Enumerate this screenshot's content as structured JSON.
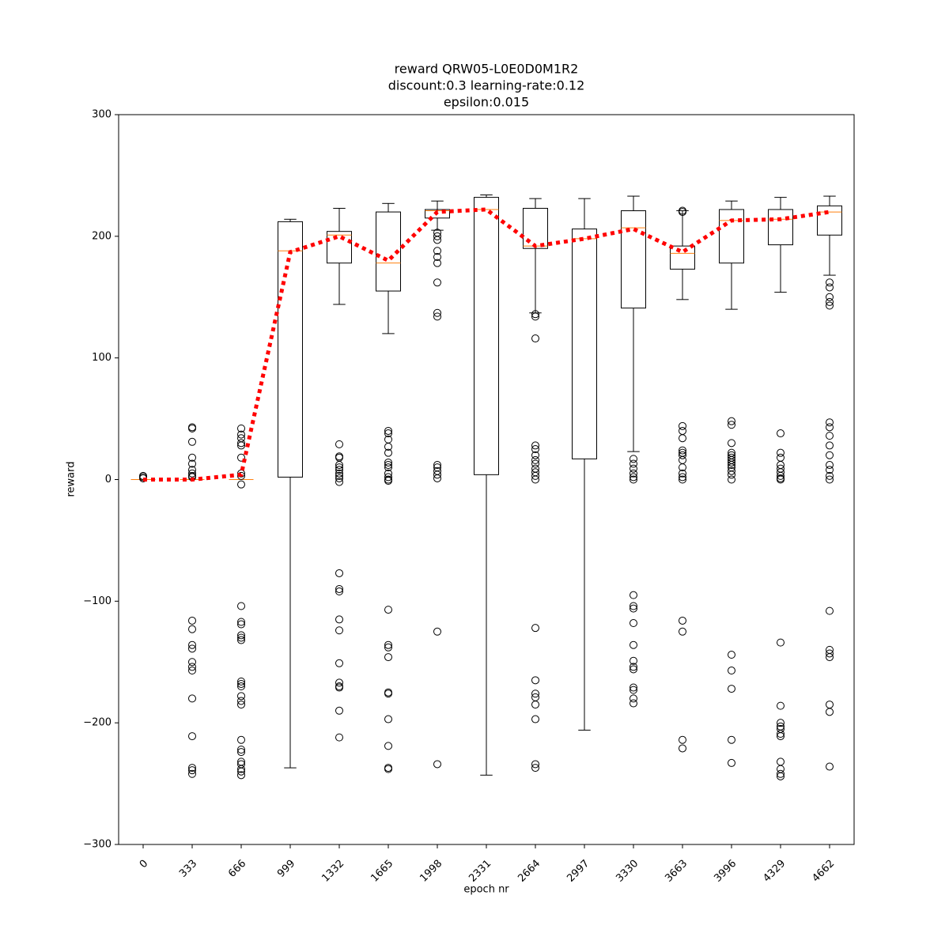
{
  "chart_data": {
    "type": "boxplot",
    "title": [
      "reward QRW05-L0E0D0M1R2",
      "discount:0.3 learning-rate:0.12",
      "epsilon:0.015"
    ],
    "xlabel": "epoch nr",
    "ylabel": "reward",
    "categories": [
      "0",
      "333",
      "666",
      "999",
      "1332",
      "1665",
      "1998",
      "2331",
      "2664",
      "2997",
      "3330",
      "3663",
      "3996",
      "4329",
      "4662"
    ],
    "ylim": [
      -300,
      300
    ],
    "yticks": [
      {
        "value": -300,
        "label": "−300"
      },
      {
        "value": -200,
        "label": "−200"
      },
      {
        "value": -100,
        "label": "−100"
      },
      0,
      100,
      200,
      300
    ],
    "box_color": "#000000",
    "median_color": "#ff7f0e",
    "boxes": {
      "low": [
        0,
        0,
        0,
        -237,
        144,
        120,
        205,
        -243,
        137,
        -206,
        23,
        148,
        140,
        154,
        168
      ],
      "q1": [
        0,
        0,
        0,
        2,
        178,
        155,
        215,
        4,
        190,
        17,
        141,
        173,
        178,
        193,
        201
      ],
      "median": [
        0,
        0,
        0,
        188,
        201,
        178,
        221,
        222,
        192,
        198,
        207,
        186,
        213,
        214,
        220
      ],
      "q3": [
        0,
        0,
        0,
        212,
        204,
        220,
        222,
        232,
        223,
        206,
        221,
        192,
        222,
        222,
        225
      ],
      "high": [
        0,
        0,
        0,
        214,
        223,
        227,
        229,
        234,
        231,
        231,
        233,
        221,
        229,
        232,
        233
      ],
      "outliers": [
        [
          1,
          2,
          3
        ],
        [
          43,
          42,
          31,
          18,
          13,
          8,
          5,
          3,
          2,
          -116,
          -123,
          -136,
          -139,
          -150,
          -154,
          -157,
          -180,
          -211,
          -237,
          -239,
          -242
        ],
        [
          42,
          37,
          34,
          30,
          28,
          18,
          5,
          3,
          -4,
          -104,
          -117,
          -119,
          -128,
          -130,
          -132,
          -166,
          -168,
          -170,
          -178,
          -182,
          -185,
          -214,
          -222,
          -224,
          -232,
          -234,
          -238,
          -240,
          -243
        ],
        [],
        [
          29,
          19,
          18,
          12,
          10,
          8,
          5,
          3,
          1,
          -2,
          -77,
          -90,
          -92,
          -115,
          -124,
          -151,
          -167,
          -170,
          -171,
          -190,
          -212
        ],
        [
          40,
          38,
          33,
          27,
          22,
          14,
          12,
          10,
          5,
          2,
          0,
          -1,
          -107,
          -136,
          -138,
          -146,
          -175,
          -176,
          -197,
          -219,
          -237,
          -238
        ],
        [
          203,
          200,
          197,
          188,
          183,
          178,
          162,
          137,
          134,
          12,
          10,
          7,
          4,
          1,
          -125,
          -234
        ],
        [],
        [
          136,
          134,
          116,
          28,
          25,
          20,
          16,
          13,
          9,
          6,
          3,
          0,
          -122,
          -165,
          -176,
          -179,
          -185,
          -197,
          -234,
          -237
        ],
        [],
        [
          17,
          13,
          9,
          5,
          2,
          0,
          -95,
          -104,
          -106,
          -118,
          -136,
          -149,
          -154,
          -156,
          -171,
          -173,
          -180,
          -184
        ],
        [
          221,
          220,
          44,
          40,
          34,
          24,
          22,
          20,
          16,
          10,
          5,
          2,
          0,
          -116,
          -125,
          -214,
          -221
        ],
        [
          48,
          45,
          30,
          22,
          20,
          18,
          16,
          14,
          12,
          10,
          7,
          4,
          0,
          -144,
          -157,
          -172,
          -214,
          -233
        ],
        [
          38,
          22,
          18,
          12,
          9,
          6,
          3,
          1,
          0,
          -134,
          -186,
          -200,
          -203,
          -205,
          -209,
          -211,
          -232,
          -238,
          -242,
          -244
        ],
        [
          162,
          158,
          150,
          146,
          143,
          47,
          43,
          36,
          28,
          20,
          12,
          8,
          3,
          0,
          -108,
          -140,
          -143,
          -146,
          -185,
          -191,
          -236
        ]
      ]
    },
    "mean": {
      "color": "#ff0000",
      "values": [
        0,
        0,
        4,
        187,
        200,
        180,
        220,
        222,
        192,
        198,
        206,
        187,
        213,
        214,
        220
      ]
    }
  }
}
